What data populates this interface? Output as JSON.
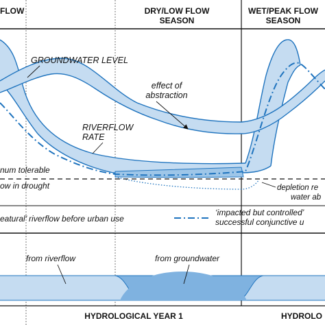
{
  "headers": {
    "left_flow": "FLOW",
    "dry_line1": "DRY/LOW FLOW",
    "dry_line2": "SEASON",
    "wet_line1": "WET/PEAK FLOW",
    "wet_line2": "SEASON"
  },
  "labels": {
    "groundwater_level": "GROUNDWATER LEVEL",
    "effect_line1": "effect of",
    "effect_line2": "abstraction",
    "riverflow_line1": "RIVERFLOW",
    "riverflow_line2": "RATE",
    "minimum_tolerable": "num tolerable",
    "flow_in_drought": "ow in drought",
    "depletion_line1": "depletion re",
    "depletion_line2": "water ab"
  },
  "legend": {
    "natural_riverflow": "eatural’ riverflow before urban use",
    "impacted_line1": "‘impacted but controlled’",
    "impacted_line2": "successful conjunctive u"
  },
  "supply": {
    "from_riverflow": "from riverflow",
    "from_groundwater": "from groundwater"
  },
  "footer": {
    "year1": "HYDROLOGICAL YEAR 1",
    "year2": "HYDROLO"
  },
  "colors": {
    "band_fill": "#c5dcf1",
    "band_fill_dark": "#9ec6e8",
    "line_blue": "#1e73be",
    "groundwater_fill": "#7fb2e0"
  }
}
